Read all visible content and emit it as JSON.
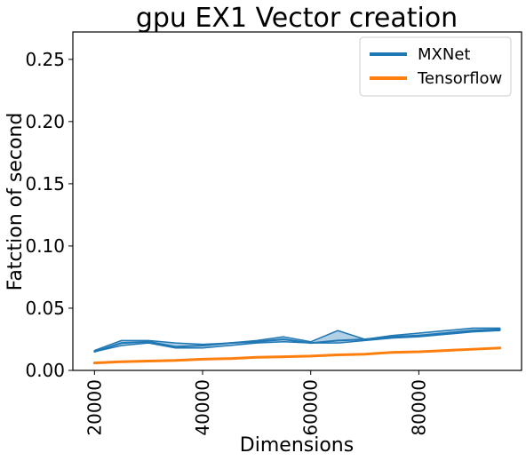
{
  "chart_data": {
    "type": "line",
    "title": "gpu EX1 Vector creation",
    "xlabel": "Dimensions",
    "ylabel": "Fatction of second",
    "xlim": [
      16000,
      99000
    ],
    "ylim": [
      0,
      0.272
    ],
    "xticks": [
      20000,
      40000,
      60000,
      80000
    ],
    "yticks": [
      0.0,
      0.05,
      0.1,
      0.15,
      0.2,
      0.25
    ],
    "ytick_labels": [
      "0.00",
      "0.05",
      "0.10",
      "0.15",
      "0.20",
      "0.25"
    ],
    "grid": false,
    "legend_position": "top-right",
    "x": [
      20000,
      25000,
      30000,
      35000,
      40000,
      45000,
      50000,
      55000,
      60000,
      65000,
      70000,
      75000,
      80000,
      85000,
      90000,
      95000
    ],
    "series": [
      {
        "name": "MXNet",
        "color": "#1f77b4",
        "values": [
          0.015,
          0.022,
          0.023,
          0.019,
          0.02,
          0.022,
          0.023,
          0.025,
          0.022,
          0.024,
          0.025,
          0.027,
          0.028,
          0.03,
          0.032,
          0.033
        ],
        "band_upper": [
          0.016,
          0.024,
          0.024,
          0.022,
          0.021,
          0.022,
          0.024,
          0.027,
          0.023,
          0.032,
          0.025,
          0.028,
          0.03,
          0.032,
          0.034,
          0.034
        ],
        "band_lower": [
          0.015,
          0.02,
          0.022,
          0.018,
          0.018,
          0.02,
          0.022,
          0.023,
          0.022,
          0.022,
          0.024,
          0.026,
          0.027,
          0.029,
          0.031,
          0.032
        ]
      },
      {
        "name": "Tensorflow",
        "color": "#ff7f0e",
        "values": [
          0.006,
          0.007,
          0.0075,
          0.008,
          0.009,
          0.0095,
          0.0105,
          0.011,
          0.0115,
          0.0125,
          0.013,
          0.0145,
          0.015,
          0.016,
          0.017,
          0.018
        ]
      }
    ]
  }
}
